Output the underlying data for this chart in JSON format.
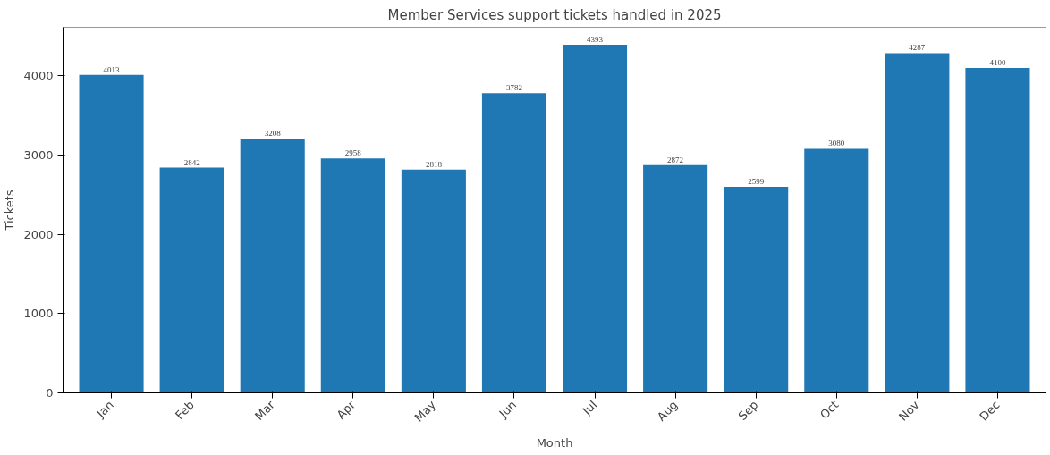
{
  "chart_data": {
    "type": "bar",
    "title": "Member Services support tickets handled in 2025",
    "xlabel": "Month",
    "ylabel": "Tickets",
    "categories": [
      "Jan",
      "Feb",
      "Mar",
      "Apr",
      "May",
      "Jun",
      "Jul",
      "Aug",
      "Sep",
      "Oct",
      "Nov",
      "Dec"
    ],
    "values": [
      4013,
      2842,
      3208,
      2958,
      2818,
      3782,
      4393,
      2872,
      2599,
      3080,
      4287,
      4100
    ],
    "color": "#1f77b4",
    "ylim": [
      0,
      4613
    ],
    "yticks": [
      0,
      1000,
      2000,
      3000,
      4000
    ],
    "data_labels": true,
    "grid": false
  }
}
